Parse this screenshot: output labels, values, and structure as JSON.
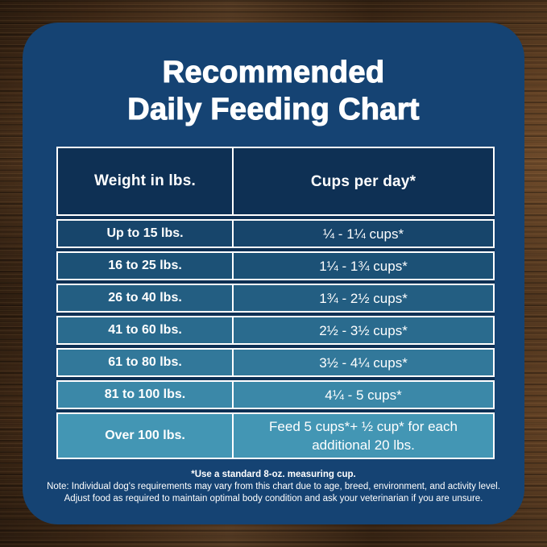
{
  "title": {
    "line1": "Recommended",
    "line2": "Daily Feeding Chart"
  },
  "table": {
    "headers": [
      "Weight in lbs.",
      "Cups per day*"
    ],
    "rows": [
      {
        "weight": "Up to 15 lbs.",
        "cups": "¼ - 1¼ cups*",
        "bg": "#17456b",
        "tall": false
      },
      {
        "weight": "16 to 25 lbs.",
        "cups": "1¼ - 1¾ cups*",
        "bg": "#1c5176",
        "tall": false
      },
      {
        "weight": "26 to 40 lbs.",
        "cups": "1¾ - 2½ cups*",
        "bg": "#235e82",
        "tall": false
      },
      {
        "weight": "41 to 60 lbs.",
        "cups": "2½ - 3½ cups*",
        "bg": "#2a6b8e",
        "tall": false
      },
      {
        "weight": "61 to 80 lbs.",
        "cups": "3½ - 4¼ cups*",
        "bg": "#32789a",
        "tall": false
      },
      {
        "weight": "81 to 100 lbs.",
        "cups": "4¼ - 5 cups*",
        "bg": "#3b88a8",
        "tall": false
      },
      {
        "weight": "Over 100 lbs.",
        "cups": "Feed 5 cups*+ ½ cup* for each additional 20 lbs.",
        "bg": "#4396b4",
        "tall": true
      }
    ]
  },
  "notes": {
    "line1": "*Use a standard 8-oz. measuring cup.",
    "line2": "Note: Individual dog's requirements may vary from this chart due to age, breed, environment, and activity level.",
    "line3": "Adjust food as required to maintain optimal body condition and ask your veterinarian if you are unsure."
  },
  "colors": {
    "wood_base": "#57381e",
    "card_background": "#154373",
    "table_gap_background": "#0e3054",
    "header_row_background": "#0e3054",
    "border_white": "#ffffff",
    "text_white": "#ffffff"
  },
  "chart_data": {
    "type": "table",
    "title": "Recommended Daily Feeding Chart",
    "columns": [
      "Weight in lbs.",
      "Cups per day*"
    ],
    "rows": [
      [
        "Up to 15 lbs.",
        "¼ - 1¼ cups*"
      ],
      [
        "16 to 25 lbs.",
        "1¼ - 1¾ cups*"
      ],
      [
        "26 to 40 lbs.",
        "1¾ - 2½ cups*"
      ],
      [
        "41 to 60 lbs.",
        "2½ - 3½ cups*"
      ],
      [
        "61 to 80 lbs.",
        "3½ - 4¼ cups*"
      ],
      [
        "81 to 100 lbs.",
        "4¼ - 5 cups*"
      ],
      [
        "Over 100 lbs.",
        "Feed 5 cups*+ ½ cup* for each additional 20 lbs."
      ]
    ],
    "footnotes": [
      "*Use a standard 8-oz. measuring cup.",
      "Note: Individual dog's requirements may vary from this chart due to age, breed, environment, and activity level.",
      "Adjust food as required to maintain optimal body condition and ask your veterinarian if you are unsure."
    ],
    "layout_hints": {
      "row_color_gradient": [
        "#17456b",
        "#4396b4"
      ],
      "grid": "white 2.5px borders, dark navy gaps"
    }
  }
}
